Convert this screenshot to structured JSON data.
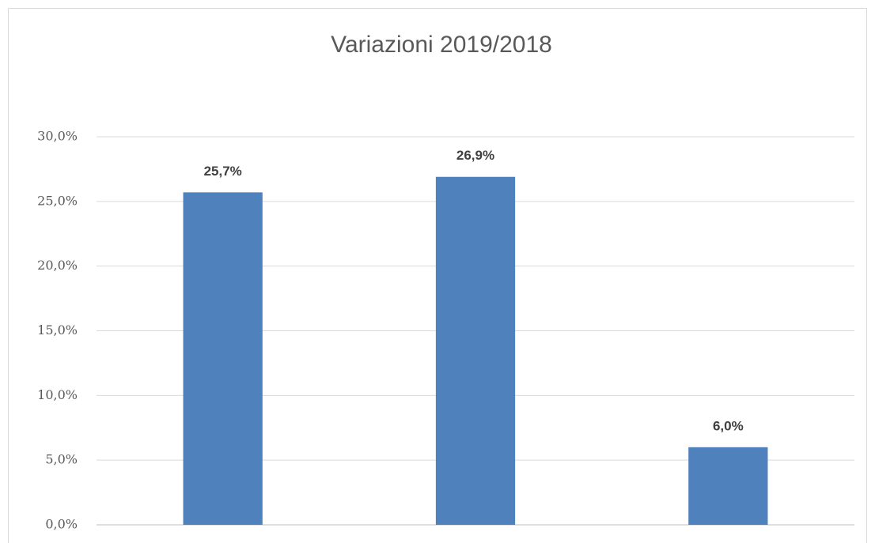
{
  "chart_data": {
    "type": "bar",
    "title": "Variazioni 2019/2018",
    "categories": [
      null,
      null,
      null
    ],
    "values": [
      25.7,
      26.9,
      6.0
    ],
    "value_labels": [
      "25,7%",
      "26,9%",
      "6,0%"
    ],
    "color": "#4f81bd",
    "ylim": [
      0,
      30
    ],
    "yticks": [
      {
        "value": 0,
        "label": "0,0%"
      },
      {
        "value": 5,
        "label": "5,0%"
      },
      {
        "value": 10,
        "label": "10,0%"
      },
      {
        "value": 15,
        "label": "15,0%"
      },
      {
        "value": 20,
        "label": "20,0%"
      },
      {
        "value": 25,
        "label": "25,0%"
      },
      {
        "value": 30,
        "label": "30,0%"
      }
    ],
    "grid": true
  }
}
